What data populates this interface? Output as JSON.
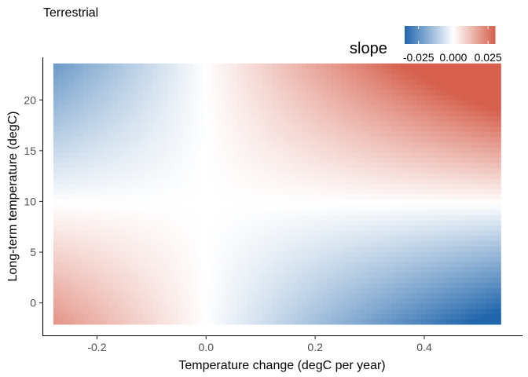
{
  "chart_data": {
    "type": "heatmap",
    "title": "Terrestrial",
    "xlabel": "Temperature change (degC per year)",
    "ylabel": "Long-term temperature (degC)",
    "xlim": [
      -0.3,
      0.58
    ],
    "ylim": [
      -3.2,
      24.2
    ],
    "x_range": [
      -0.28,
      0.54
    ],
    "y_range": [
      -2.1,
      23.6
    ],
    "x_ticks": [
      -0.2,
      0.0,
      0.2,
      0.4
    ],
    "x_tick_labels": [
      "-0.2",
      "0.0",
      "0.2",
      "0.4"
    ],
    "y_ticks": [
      0,
      5,
      10,
      15,
      20
    ],
    "y_tick_labels": [
      "0",
      "5",
      "10",
      "15",
      "20"
    ],
    "grid": false,
    "fill_model": {
      "description": "slope = a + b*x + c*y + d*x*y",
      "a": 0.0,
      "b": -0.06,
      "c": 0.0,
      "d": 0.0061
    },
    "legend": {
      "title": "slope",
      "position": "top-right",
      "scale": "diverging",
      "low_color": "#2166ac",
      "mid_color": "#ffffff",
      "high_color": "#d6604d",
      "limits": [
        -0.035,
        0.03
      ],
      "breaks": [
        -0.025,
        0.0,
        0.025
      ],
      "break_labels": [
        "-0.025",
        "0.000",
        "0.025"
      ]
    }
  }
}
